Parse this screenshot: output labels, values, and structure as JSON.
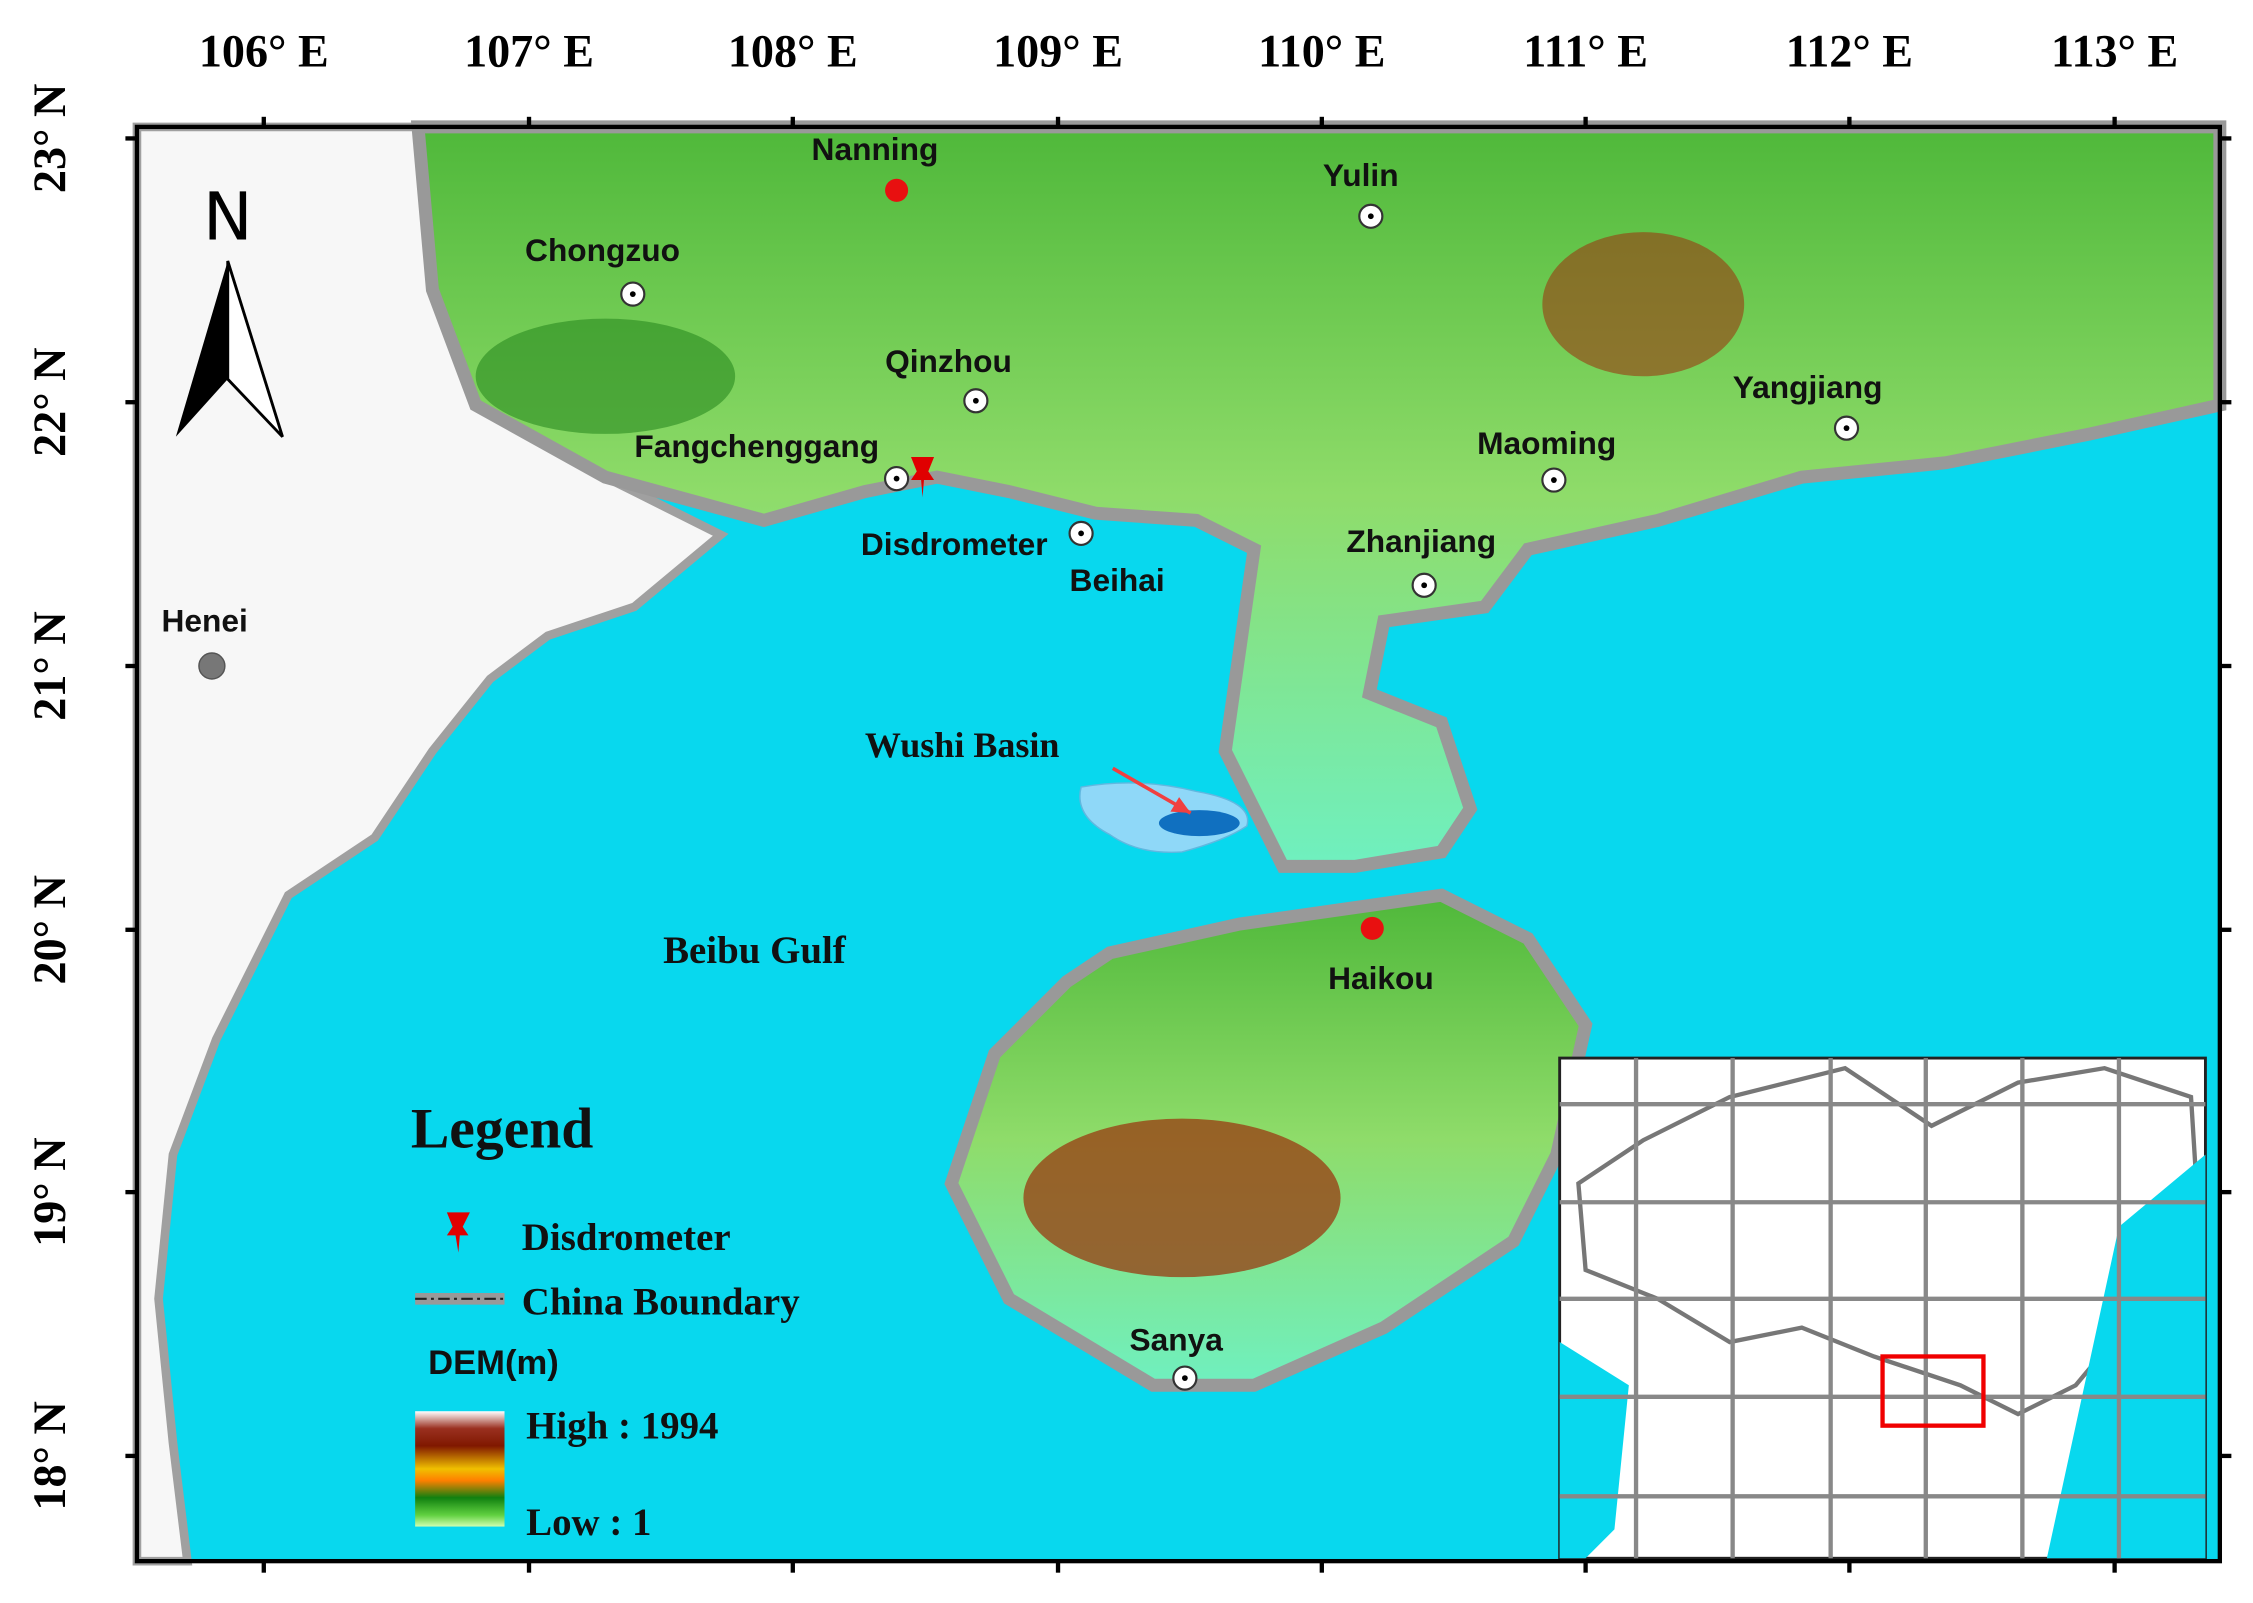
{
  "axes": {
    "longitude_labels": [
      "106° E",
      "107° E",
      "108° E",
      "109° E",
      "110° E",
      "111° E",
      "112° E",
      "113° E"
    ],
    "latitude_labels": [
      "23° N",
      "22° N",
      "21° N",
      "20° N",
      "19° N",
      "18° N"
    ]
  },
  "north_arrow": "N",
  "places": [
    "Nanning",
    "Yulin",
    "Chongzuo",
    "Qinzhou",
    "Fangchenggang",
    "Disdrometer",
    "Beihai",
    "Zhanjiang",
    "Maoming",
    "Yangjiang",
    "Henei",
    "Haikou",
    "Sanya"
  ],
  "annotations": {
    "wushi_basin": "Wushi Basin",
    "beibu_gulf": "Beibu Gulf"
  },
  "legend": {
    "title": "Legend",
    "items": [
      "Disdrometer",
      "China Boundary"
    ],
    "dem_title": "DEM(m)",
    "high": "High : 1994",
    "low": "Low : 1"
  }
}
